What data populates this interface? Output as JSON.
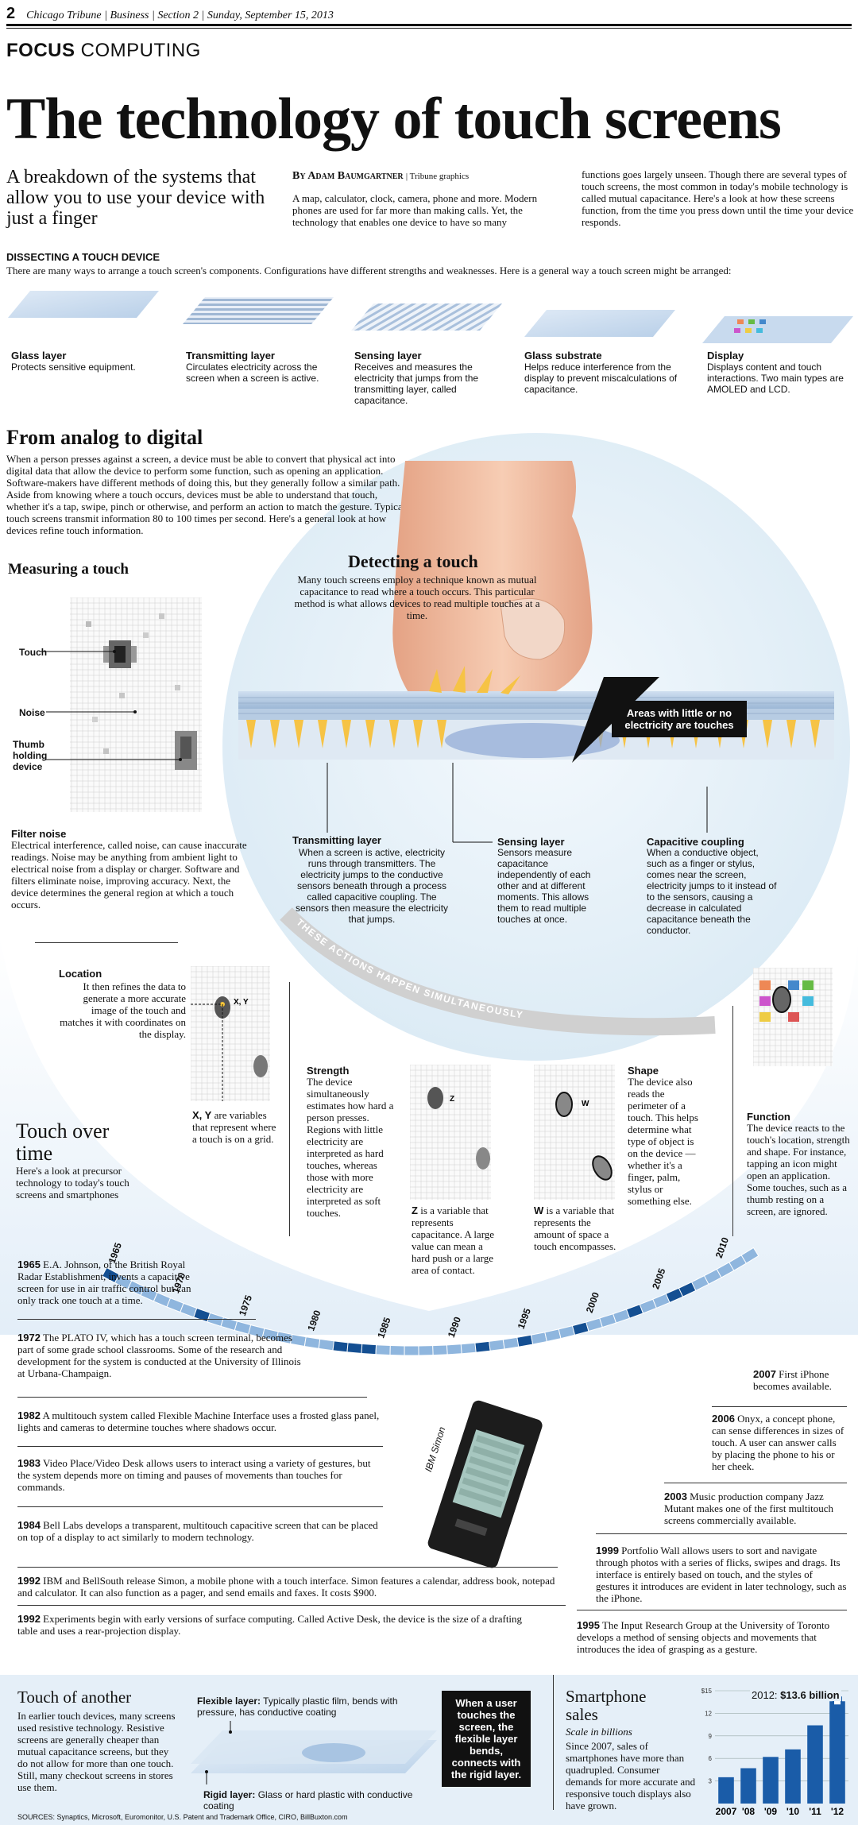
{
  "folio": {
    "page": "2",
    "line": "Chicago Tribune | Business | Section 2 | Sunday, September 15, 2013"
  },
  "section": {
    "focus": "FOCUS",
    "topic": "COMPUTING"
  },
  "headline": "The technology of touch screens",
  "deck": "A breakdown of the systems that allow you to use your device with just a finger",
  "byline": {
    "name": "By Adam Baumgartner",
    "credit": "| Tribune graphics"
  },
  "intro": {
    "col1": "A map, calculator, clock, camera, phone and more. Modern phones are used for far more than making calls. Yet, the technology that enables one device to have so many",
    "col2": "functions goes largely unseen. Though there are several types of touch screens, the most common in today's mobile technology is called mutual capacitance. Here's a look at how these screens function, from the time you press down until the time your device responds."
  },
  "dissect": {
    "title": "DISSECTING A TOUCH DEVICE",
    "text": "There are many ways to arrange a touch screen's components. Configurations have different strengths and weaknesses. Here is a general way a touch screen might be arranged:",
    "layers": [
      {
        "name": "Glass layer",
        "desc": "Protects sensitive equipment."
      },
      {
        "name": "Transmitting layer",
        "desc": "Circulates electricity across the screen when a screen is active."
      },
      {
        "name": "Sensing layer",
        "desc": "Receives and measures the electricity that jumps from the transmitting layer, called capacitance."
      },
      {
        "name": "Glass substrate",
        "desc": "Helps reduce interference from the display to prevent miscalculations of capacitance."
      },
      {
        "name": "Display",
        "desc": "Displays content and touch interactions. Two main types are AMOLED and LCD."
      }
    ]
  },
  "analog": {
    "title": "From analog to digital",
    "text": "When a person presses against a screen, a device must be able to convert that physical act into digital data that allow the device to perform some function, such as opening an application. Software-makers have different methods of doing this, but they generally follow a similar path. Aside from knowing where a touch occurs, devices must be able to understand that touch, whether it's a tap, swipe, pinch or otherwise, and perform an action to match the gesture. Typical touch screens transmit information 80 to 100 times per second. Here's a general look at how devices refine touch information."
  },
  "measuring": {
    "title": "Measuring a touch",
    "labels": [
      "Touch",
      "Noise",
      "Thumb holding device"
    ],
    "filter_title": "Filter noise",
    "filter_text": "Electrical interference, called noise, can cause inaccurate readings. Noise may be anything from ambient light to electrical noise from a display or charger. Software and filters eliminate noise, improving accuracy. Next, the device determines the general region at which a touch occurs."
  },
  "detecting": {
    "title": "Detecting a touch",
    "text": "Many touch screens employ a technique known as mutual capacitance to read where a touch occurs. This particular method is what allows devices to read multiple touches at a time.",
    "callout": "Areas with little or no electricity are touches",
    "transmitting_title": "Transmitting layer",
    "transmitting_text": "When a screen is active, electricity runs through transmitters. The electricity jumps to the conductive sensors beneath through a process called capacitive coupling. The sensors then measure the electricity that jumps.",
    "sensing_title": "Sensing layer",
    "sensing_text": "Sensors measure capacitance independently of each other and at different moments. This allows them to read multiple touches at once.",
    "coupling_title": "Capacitive coupling",
    "coupling_text": "When a conductive object, such as a finger or stylus, comes near the screen, electricity jumps to it instead of to the sensors, causing a decrease in calculated capacitance beneath the conductor.",
    "arc": "THESE ACTIONS HAPPEN SIMULTANEOUSLY"
  },
  "steps": {
    "location_title": "Location",
    "location_text": "It then refines the data to generate a more accurate image of the touch and matches it with coordinates on the display.",
    "xy_bold": "X, Y",
    "xy_text": "are variables that represent where a touch is on a grid.",
    "xy_label": "X, Y",
    "strength_title": "Strength",
    "strength_text": "The device simultaneously estimates how hard a person presses. Regions with little electricity are interpreted as hard touches, whereas those with more electricity are interpreted as soft touches.",
    "z_bold": "Z",
    "z_text": "is a variable that represents capacitance. A large value can mean a hard push or a large area of contact.",
    "z_label": "Z",
    "shape_title": "Shape",
    "shape_text": "The device also reads the perimeter of a touch. This helps determine what type of object is on the device — whether it's a finger, palm, stylus or something else.",
    "w_bold": "W",
    "w_text": "is a variable that represents the amount of space a touch encompasses.",
    "w_label": "W",
    "function_title": "Function",
    "function_text": "The device reacts to the touch's location, strength and shape. For instance, tapping an icon might open an application. Some touches, such as a thumb resting on a screen, are ignored."
  },
  "timeline": {
    "title": "Touch over time",
    "text": "Here's a look at precursor technology to today's touch screens and smartphones",
    "years": [
      "1965",
      "1970",
      "1975",
      "1980",
      "1985",
      "1990",
      "1995",
      "2000",
      "2005",
      "2010"
    ],
    "events": [
      {
        "year": "1965",
        "text": "E.A. Johnson, of the British Royal Radar Establishment, invents a capacitive screen for use in air traffic control but can only track one touch at a time."
      },
      {
        "year": "1972",
        "text": "The PLATO IV, which has a touch screen terminal, becomes part of some grade school classrooms. Some of the research and development for the system is conducted at the University of Illinois at Urbana-Champaign."
      },
      {
        "year": "1982",
        "text": "A multitouch system called Flexible Machine Interface uses a frosted glass panel, lights and cameras to determine touches where shadows occur."
      },
      {
        "year": "1983",
        "text": "Video Place/Video Desk allows users to interact using a variety of gestures, but the system depends more on timing and pauses of movements than touches for commands."
      },
      {
        "year": "1984",
        "text": "Bell Labs develops a transparent, multitouch capacitive screen that can be placed on top of a display to act similarly to modern technology."
      },
      {
        "year": "1992",
        "text": "IBM and BellSouth release Simon, a mobile phone with a touch interface. Simon features a calendar, address book, notepad and calculator. It can also function as a pager, and send emails and faxes. It costs $900."
      },
      {
        "year": "1992",
        "text": "Experiments begin with early versions of surface computing. Called Active Desk, the device is the size of a drafting table and uses a rear-projection display."
      },
      {
        "year": "1995",
        "text": "The Input Research Group at the University of Toronto develops a method of sensing objects and movements that introduces the idea of grasping as a gesture."
      },
      {
        "year": "1999",
        "text": "Portfolio Wall allows users to sort and navigate through photos with a series of flicks, swipes and drags. Its interface is entirely based on touch, and the styles of gestures it introduces are evident in later technology, such as the iPhone."
      },
      {
        "year": "2003",
        "text": "Music production company Jazz Mutant makes one of the first multitouch screens commercially available."
      },
      {
        "year": "2006",
        "text": "Onyx, a concept phone, can sense differences in sizes of touch. A user can answer calls by placing the phone to his or her cheek."
      },
      {
        "year": "2007",
        "text": "First iPhone becomes available."
      }
    ],
    "phone_label": "IBM Simon"
  },
  "another": {
    "title": "Touch of another",
    "text": "In earlier touch devices, many screens used resistive technology. Resistive screens are generally cheaper than mutual capacitance screens, but they do not allow for more than one touch. Still, many checkout screens in stores use them.",
    "flex_bold": "Flexible layer:",
    "flex_text": "Typically plastic film, bends with pressure, has conductive coating",
    "rigid_bold": "Rigid layer:",
    "rigid_text": "Glass or hard plastic with conductive coating",
    "callout": "When a user touches the screen, the flexible layer bends, connects with the rigid layer."
  },
  "sales": {
    "title": "Smartphone sales",
    "subtitle": "Scale in billions",
    "text": "Since 2007, sales of smartphones have more than quadrupled. Consumer demands for more accurate and responsive touch displays also have grown.",
    "callout_year": "2012:",
    "callout_value": "$13.6 billion"
  },
  "chart_data": {
    "type": "bar",
    "categories": [
      "2007",
      "'08",
      "'09",
      "'10",
      "'11",
      "'12"
    ],
    "values": [
      3.5,
      4.7,
      6.2,
      7.2,
      10.4,
      13.6
    ],
    "ytick_labels": [
      "3",
      "6",
      "9",
      "12",
      "$15"
    ],
    "yticks": [
      3,
      6,
      9,
      12,
      15
    ],
    "ylim": [
      0,
      15
    ],
    "title": "",
    "bar_color": "#1a5ca8"
  },
  "sources": "SOURCES: Synaptics, Microsoft, Euromonitor, U.S. Patent and Trademark Office, CIRO, BillBuxton.com"
}
